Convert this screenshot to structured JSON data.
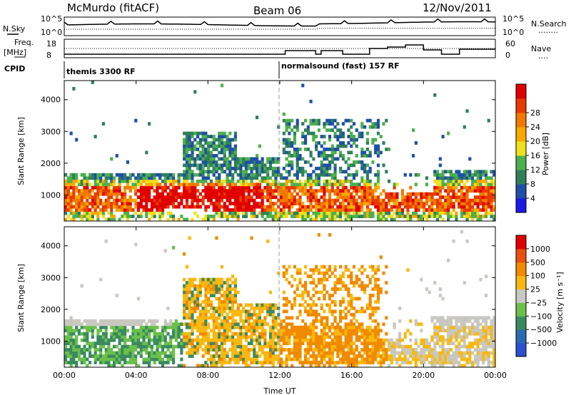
{
  "header": {
    "station": "McMurdo (fitACF)",
    "beam": "Beam 06",
    "date": "12/Nov/2011"
  },
  "noise_panel": {
    "left_label": "N.Sky",
    "right_label": "N.Search",
    "right_label_dots": "........",
    "ticks": [
      "10^5",
      "10^0"
    ]
  },
  "freq_panel": {
    "left_label_line1": "Freq.",
    "left_label_line2": "[MHz]",
    "left_ticks": [
      "18",
      "8"
    ],
    "right_label": "Nave",
    "right_label_dots": "....",
    "right_ticks": [
      "60",
      "0"
    ]
  },
  "cpid": {
    "label": "CPID",
    "modes": [
      {
        "text": "themis 3300 RF",
        "start_hour": 0
      },
      {
        "text": "normalsound (fast) 157 RF",
        "start_hour": 12
      }
    ]
  },
  "chart_data": [
    {
      "type": "heatmap",
      "name": "power",
      "ylabel": "Slant Range [km]",
      "ylim": [
        180,
        4600
      ],
      "yticks": [
        "1000",
        "2000",
        "3000",
        "4000"
      ],
      "xlim": [
        0,
        24
      ],
      "xticks": [
        "00:00",
        "04:00",
        "08:00",
        "12:00",
        "16:00",
        "20:00",
        "00:00"
      ],
      "colorbar": {
        "label": "Power [dB]",
        "ticks": [
          "4",
          "8",
          "12",
          "16",
          "20",
          "24",
          "28"
        ],
        "colors": [
          "#1a1ae6",
          "#1f4fa8",
          "#2f7f5a",
          "#4cb04c",
          "#f0e01a",
          "#f8a800",
          "#f07a00",
          "#e83a00",
          "#e00000"
        ]
      }
    },
    {
      "type": "heatmap",
      "name": "velocity",
      "ylabel": "Slant Range [km]",
      "ylim": [
        180,
        4600
      ],
      "yticks": [
        "1000",
        "2000",
        "3000",
        "4000"
      ],
      "xlim": [
        0,
        24
      ],
      "xticks": [
        "00:00",
        "04:00",
        "08:00",
        "12:00",
        "16:00",
        "20:00",
        "00:00"
      ],
      "xlabel": "Time UT",
      "colorbar": {
        "label": "Velocity [m s⁻¹]",
        "ticks": [
          "1000",
          "500",
          "100",
          "25",
          "−25",
          "−100",
          "−500",
          "−1000"
        ],
        "colors": [
          "#2a4fd0",
          "#2a6ab0",
          "#3a8a60",
          "#6bc04a",
          "#c8c8c0",
          "#f8b810",
          "#f08a00",
          "#e85010",
          "#e00000"
        ]
      }
    }
  ]
}
